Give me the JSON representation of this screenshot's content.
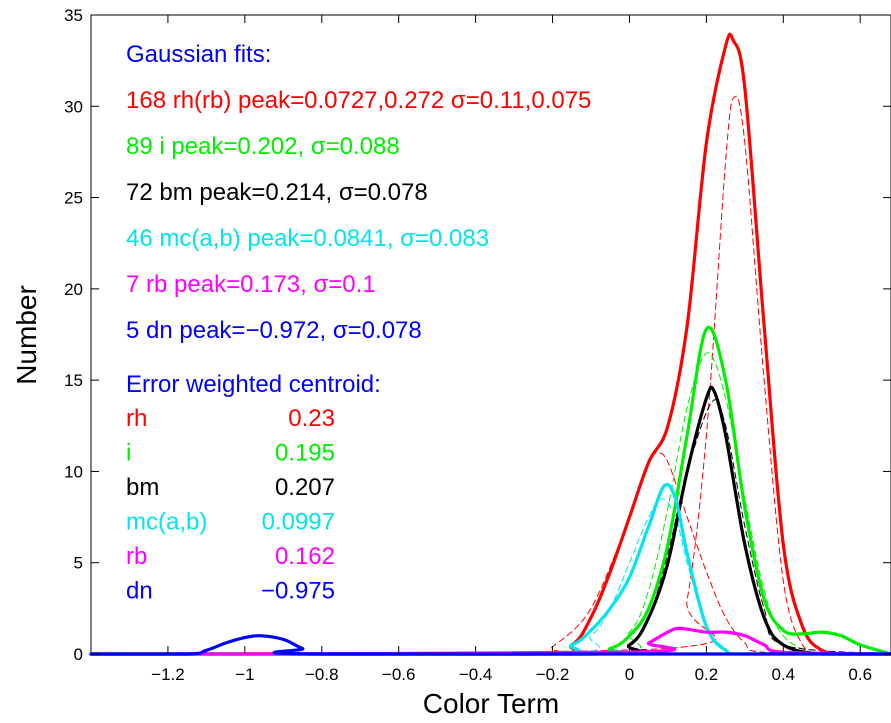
{
  "chart_data": {
    "type": "line",
    "xlabel": "Color Term",
    "ylabel": "Number",
    "xlim": [
      -1.4,
      0.68
    ],
    "ylim": [
      0,
      35
    ],
    "grid": false,
    "x_ticks": [
      -1.2,
      -1,
      -0.8,
      -0.6,
      -0.4,
      -0.2,
      0,
      0.2,
      0.4,
      0.6
    ],
    "x_tick_labels": [
      "−1.2",
      "−1",
      "−0.8",
      "−0.6",
      "−0.4",
      "−0.2",
      "0",
      "0.2",
      "0.4",
      "0.6"
    ],
    "y_ticks": [
      0,
      5,
      10,
      15,
      20,
      25,
      30,
      35
    ],
    "y_tick_labels": [
      "0",
      "5",
      "10",
      "15",
      "20",
      "25",
      "30",
      "35"
    ],
    "series": [
      {
        "color": "#ff0000",
        "style": "solid",
        "width": 3.2,
        "x": [
          -1.4,
          -0.25,
          -0.15,
          -0.1,
          -0.05,
          0,
          0.05,
          0.1,
          0.15,
          0.2,
          0.25,
          0.27,
          0.3,
          0.35,
          0.4,
          0.45,
          0.5,
          0.55,
          0.6,
          0.68
        ],
        "y": [
          0,
          0,
          0.5,
          2.0,
          4.5,
          7.5,
          10.5,
          12.5,
          18,
          28,
          33.3,
          33.6,
          31,
          18,
          6,
          1.5,
          0.2,
          0,
          0,
          0
        ]
      },
      {
        "color": "#ff0000",
        "style": "dashed",
        "width": 1,
        "x": [
          -1.4,
          -0.25,
          -0.2,
          -0.1,
          0,
          0.05,
          0.0727,
          0.1,
          0.15,
          0.2,
          0.25,
          0.3,
          0.35,
          0.68
        ],
        "y": [
          0,
          0,
          0.4,
          2.5,
          7.5,
          10.5,
          11,
          10.5,
          7.5,
          4.5,
          2.0,
          0.6,
          0.1,
          0
        ]
      },
      {
        "color": "#ff0000",
        "style": "dashed",
        "width": 1,
        "x": [
          -1.4,
          0.1,
          0.15,
          0.2,
          0.25,
          0.272,
          0.3,
          0.35,
          0.4,
          0.45,
          0.5,
          0.68
        ],
        "y": [
          0,
          0.3,
          3,
          12,
          27,
          30.5,
          28,
          15,
          4,
          0.5,
          0,
          0
        ]
      },
      {
        "color": "#00ee00",
        "style": "solid",
        "width": 3.2,
        "x": [
          -1.4,
          -0.15,
          -0.05,
          0,
          0.05,
          0.1,
          0.15,
          0.2,
          0.25,
          0.3,
          0.35,
          0.4,
          0.45,
          0.5,
          0.55,
          0.6,
          0.68
        ],
        "y": [
          0,
          0,
          0.3,
          1.0,
          2.5,
          6,
          12,
          17.8,
          15,
          8,
          3,
          1.3,
          1.1,
          1.2,
          1.0,
          0.5,
          0
        ]
      },
      {
        "color": "#00ee00",
        "style": "dashed",
        "width": 1,
        "x": [
          -1.4,
          -0.1,
          0,
          0.05,
          0.1,
          0.15,
          0.202,
          0.25,
          0.3,
          0.35,
          0.4,
          0.5,
          0.68
        ],
        "y": [
          0,
          0,
          1.2,
          3.5,
          8,
          13.5,
          16.5,
          14,
          8.5,
          3.5,
          1.0,
          0,
          0
        ]
      },
      {
        "color": "#000000",
        "style": "solid",
        "width": 3.2,
        "x": [
          -1.4,
          -0.1,
          0,
          0.05,
          0.1,
          0.15,
          0.2,
          0.22,
          0.25,
          0.3,
          0.35,
          0.4,
          0.5,
          0.68
        ],
        "y": [
          0,
          0,
          0.5,
          2.0,
          5,
          10,
          14,
          14.4,
          12,
          6,
          2.0,
          0.5,
          0,
          0
        ]
      },
      {
        "color": "#000000",
        "style": "dashed",
        "width": 1,
        "x": [
          -1.4,
          -0.05,
          0,
          0.05,
          0.1,
          0.15,
          0.214,
          0.25,
          0.3,
          0.35,
          0.4,
          0.68
        ],
        "y": [
          0,
          0,
          0.5,
          2.0,
          5.5,
          10,
          13.8,
          12.5,
          7,
          2.5,
          0.5,
          0
        ]
      },
      {
        "color": "#00e5ee",
        "style": "solid",
        "width": 3.2,
        "x": [
          -1.4,
          -0.25,
          -0.15,
          -0.1,
          -0.05,
          0,
          0.05,
          0.09,
          0.12,
          0.15,
          0.2,
          0.25,
          0.3,
          0.68
        ],
        "y": [
          0,
          0,
          0.5,
          1.3,
          2.5,
          4.2,
          7.0,
          9.2,
          8.5,
          5.5,
          1.5,
          0.2,
          0,
          0
        ]
      },
      {
        "color": "#00e5ee",
        "style": "dashed",
        "width": 1,
        "x": [
          -1.4,
          -0.2,
          -0.1,
          -0.05,
          0,
          0.05,
          0.0841,
          0.12,
          0.15,
          0.2,
          0.25,
          0.3,
          0.68
        ],
        "y": [
          0,
          0,
          1.0,
          2.5,
          5,
          7.5,
          8.5,
          7.5,
          5,
          1.5,
          0.3,
          0,
          0
        ]
      },
      {
        "color": "#ff00ff",
        "style": "solid",
        "width": 3.2,
        "x": [
          -1.4,
          0,
          0.05,
          0.1,
          0.13,
          0.2,
          0.25,
          0.3,
          0.35,
          0.4,
          0.68
        ],
        "y": [
          0,
          0.1,
          0.6,
          1.2,
          1.4,
          1.2,
          1.2,
          1.0,
          0.5,
          0.1,
          0
        ]
      },
      {
        "color": "#0000ff",
        "style": "solid",
        "width": 3.2,
        "x": [
          -1.4,
          -1.15,
          -1.1,
          -1.05,
          -1.0,
          -0.96,
          -0.9,
          -0.85,
          -0.8,
          0.68
        ],
        "y": [
          0,
          0,
          0.2,
          0.6,
          0.9,
          1.0,
          0.8,
          0.3,
          0,
          0
        ]
      }
    ]
  },
  "annotations": {
    "gaussian_header": {
      "text": "Gaussian fits:",
      "color": "#0000ff"
    },
    "gaussian_lines": [
      {
        "text": "168 rh(rb) peak=0.0727,0.272 σ=0.11,0.075",
        "color": "#ff0000"
      },
      {
        "text": "89 i peak=0.202, σ=0.088",
        "color": "#00ee00"
      },
      {
        "text": "72 bm peak=0.214, σ=0.078",
        "color": "#000000"
      },
      {
        "text": "46 mc(a,b) peak=0.0841, σ=0.083",
        "color": "#00e5ee"
      },
      {
        "text": "7 rb peak=0.173, σ=0.1",
        "color": "#ff00ff"
      },
      {
        "text": "5 dn peak=−0.972, σ=0.078",
        "color": "#0000ff"
      }
    ],
    "centroid_header": {
      "text": "Error weighted centroid:",
      "color": "#0000ff"
    },
    "centroid_rows": [
      {
        "label": "rh",
        "value": "0.23",
        "color": "#ff0000"
      },
      {
        "label": "i",
        "value": "0.195",
        "color": "#00ee00"
      },
      {
        "label": "bm",
        "value": "0.207",
        "color": "#000000"
      },
      {
        "label": "mc(a,b)",
        "value": "0.0997",
        "color": "#00e5ee"
      },
      {
        "label": "rb",
        "value": "0.162",
        "color": "#ff00ff"
      },
      {
        "label": "dn",
        "value": "−0.975",
        "color": "#0000ff"
      }
    ]
  }
}
